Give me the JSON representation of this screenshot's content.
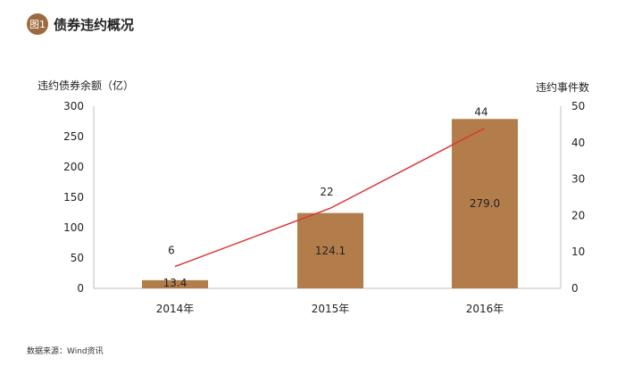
{
  "header": {
    "badge": "图1",
    "title": "债券违约概况"
  },
  "source": "数据来源：Wind资讯",
  "chart_data": {
    "type": "bar",
    "categories": [
      "2014年",
      "2015年",
      "2016年"
    ],
    "bar_series": {
      "name": "违约债券余额（亿）",
      "values": [
        13.4,
        124.1,
        279.0
      ],
      "labels": [
        "13.4",
        "124.1",
        "279.0"
      ],
      "color": "#b37d4b"
    },
    "line_series": {
      "name": "违约事件数",
      "values": [
        6,
        22,
        44
      ],
      "labels": [
        "6",
        "22",
        "44"
      ],
      "color": "#d9373a"
    },
    "left_axis": {
      "label": "违约债券余额（亿）",
      "min": 0,
      "max": 300,
      "ticks": [
        "0",
        "50",
        "100",
        "150",
        "200",
        "250",
        "300"
      ]
    },
    "right_axis": {
      "label": "违约事件数",
      "min": 0,
      "max": 50,
      "ticks": [
        "0",
        "10",
        "20",
        "30",
        "40",
        "50"
      ]
    },
    "grid": false
  }
}
